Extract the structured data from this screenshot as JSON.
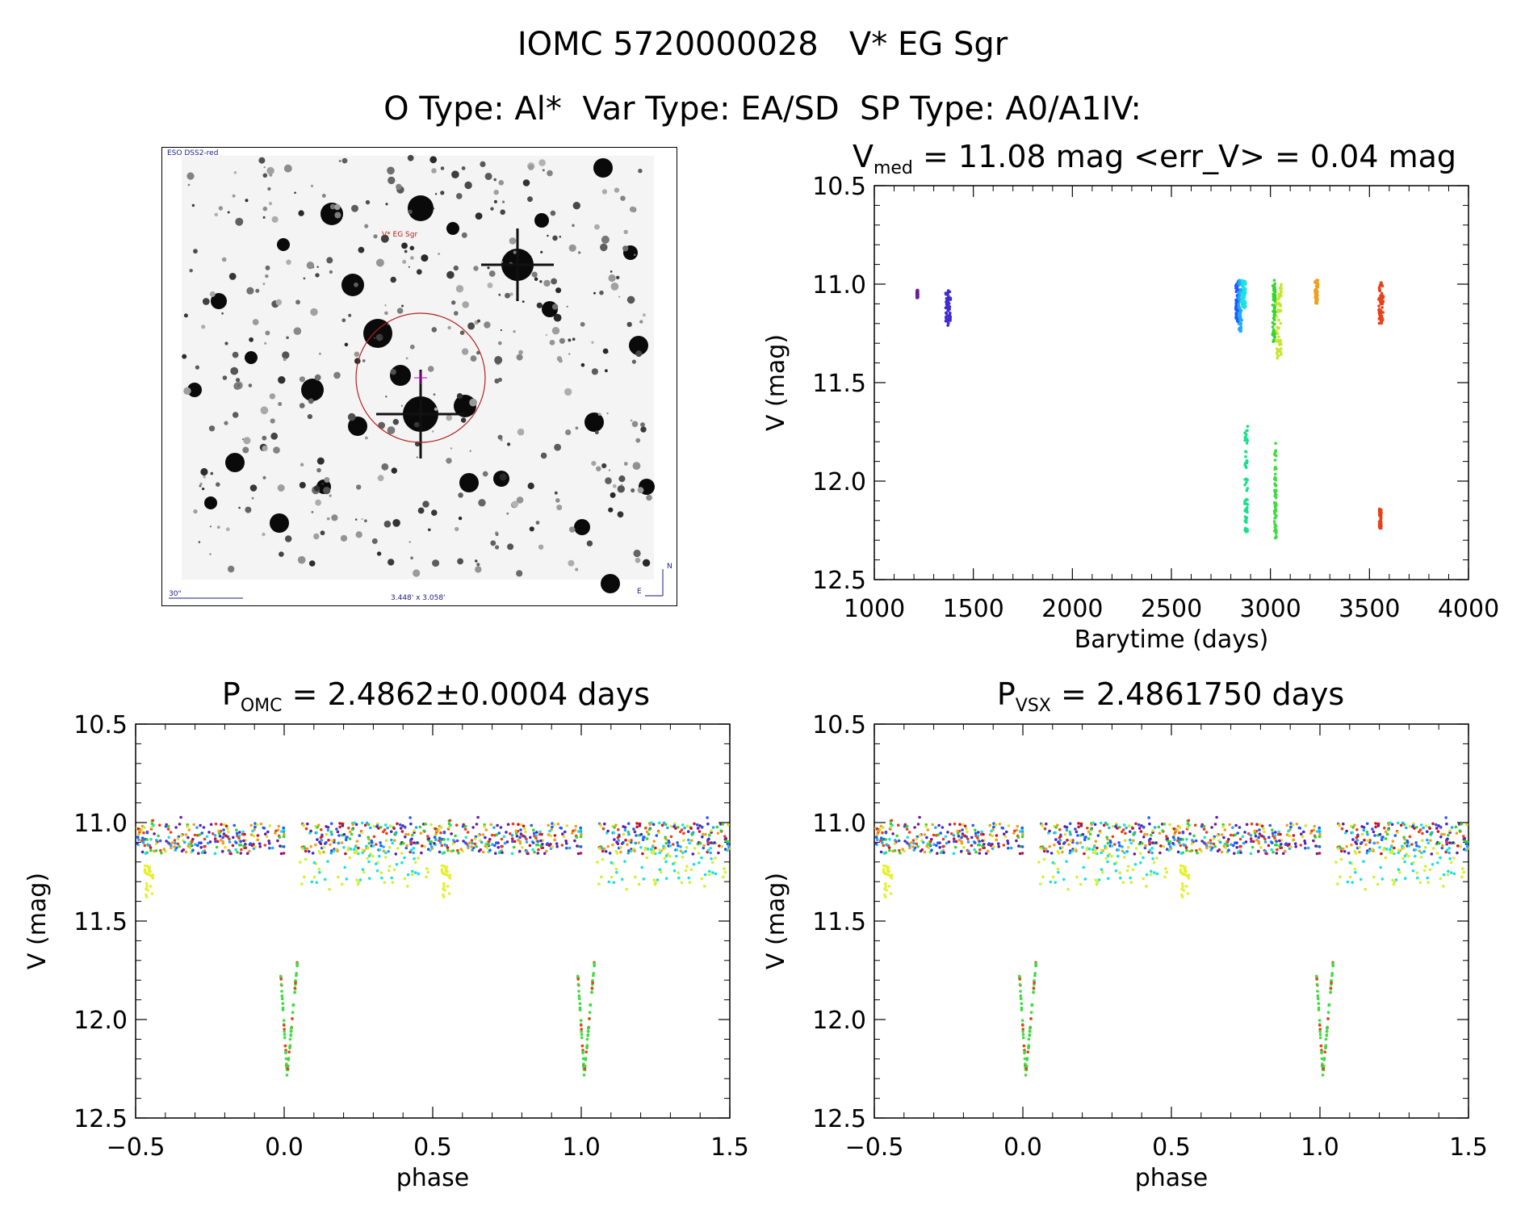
{
  "header": {
    "title": "IOMC 5720000028   V* EG Sgr",
    "subtitle": "O Type: Al*  Var Type: EA/SD  SP Type: A0/A1IV:"
  },
  "sky_image": {
    "survey_label": "ESO DSS2-red",
    "target_label": "V* EG Sgr",
    "scale_label": "30\"",
    "fov_label": "3.448' x 3.058'",
    "north_label": "N",
    "east_label": "E",
    "circle_color": "#b22222",
    "label_color_survey": "#1a1a8a",
    "label_color_target": "#b22222"
  },
  "panels": {
    "lightcurve": {
      "title_main": "V",
      "title_sub": "med",
      "title_rest": " = 11.08 mag <err_V> = 0.04 mag",
      "xlabel": "Barytime (days)",
      "ylabel": "V (mag)"
    },
    "phase_omc": {
      "title_main": "P",
      "title_sub": "OMC",
      "title_rest": " = 2.4862±0.0004 days",
      "xlabel": "phase",
      "ylabel": "V (mag)"
    },
    "phase_vsx": {
      "title_main": "P",
      "title_sub": "VSX",
      "title_rest": " = 2.4861750 days",
      "xlabel": "phase",
      "ylabel": "V (mag)"
    }
  },
  "chart_data": [
    {
      "type": "scatter",
      "id": "lightcurve",
      "xlim": [
        1000,
        4000
      ],
      "ylim": [
        12.5,
        10.5
      ],
      "x_ticks": [
        1000,
        1500,
        2000,
        2500,
        3000,
        3500,
        4000
      ],
      "x_tick_labels": [
        "1000",
        "1500",
        "2000",
        "2500",
        "3000",
        "3500",
        "4000"
      ],
      "y_ticks": [
        10.5,
        11.0,
        11.5,
        12.0,
        12.5
      ],
      "y_tick_labels": [
        "10.5",
        "11.0",
        "11.5",
        "12.0",
        "12.5"
      ],
      "grid": false,
      "clusters": [
        {
          "x": [
            1215,
            1220
          ],
          "y": [
            11.03,
            11.07
          ],
          "color": "#6a1b9a"
        },
        {
          "x": [
            1360,
            1385
          ],
          "y": [
            11.03,
            11.21
          ],
          "color": "#3f2bd1"
        },
        {
          "x": [
            2825,
            2840
          ],
          "y": [
            10.98,
            11.2
          ],
          "color": "#1e5bff"
        },
        {
          "x": [
            2840,
            2855
          ],
          "y": [
            10.98,
            11.24
          ],
          "color": "#1fa9ff"
        },
        {
          "x": [
            2855,
            2875
          ],
          "y": [
            10.98,
            11.12
          ],
          "color": "#18e2e2"
        },
        {
          "x": [
            2870,
            2885
          ],
          "y": [
            11.72,
            12.26
          ],
          "color": "#19e08c"
        },
        {
          "x": [
            3010,
            3025
          ],
          "y": [
            10.98,
            11.3
          ],
          "color": "#33d62b"
        },
        {
          "x": [
            3020,
            3030
          ],
          "y": [
            11.8,
            12.3
          ],
          "color": "#3fdc3f"
        },
        {
          "x": [
            3030,
            3055
          ],
          "y": [
            11.0,
            11.38
          ],
          "color": "#c9e52b"
        },
        {
          "x": [
            3225,
            3240
          ],
          "y": [
            10.98,
            11.1
          ],
          "color": "#f0a020"
        },
        {
          "x": [
            3545,
            3570
          ],
          "y": [
            10.99,
            11.2
          ],
          "color": "#e8401a"
        },
        {
          "x": [
            3550,
            3560
          ],
          "y": [
            12.14,
            12.24
          ],
          "color": "#e8401a"
        }
      ]
    },
    {
      "type": "scatter",
      "id": "phase_omc",
      "xlim": [
        -0.5,
        1.5
      ],
      "ylim": [
        12.5,
        10.5
      ],
      "x_ticks": [
        -0.5,
        0.0,
        0.5,
        1.0,
        1.5
      ],
      "x_tick_labels": [
        "−0.5",
        "0.0",
        "0.5",
        "1.0",
        "1.5"
      ],
      "y_ticks": [
        10.5,
        11.0,
        11.5,
        12.0,
        12.5
      ],
      "y_tick_labels": [
        "10.5",
        "11.0",
        "11.5",
        "12.0",
        "12.5"
      ],
      "grid": false,
      "shift": 0.0,
      "eclipse": {
        "phase": 0.0,
        "depth": 12.28,
        "ingress": [
          -0.012,
          11.76
        ],
        "egress": [
          0.045,
          11.7
        ]
      },
      "out_of_eclipse_mag": [
        10.98,
        11.25
      ],
      "dip_mag": [
        11.2,
        11.38
      ]
    },
    {
      "type": "scatter",
      "id": "phase_vsx",
      "xlim": [
        -0.5,
        1.5
      ],
      "ylim": [
        12.5,
        10.5
      ],
      "x_ticks": [
        -0.5,
        0.0,
        0.5,
        1.0,
        1.5
      ],
      "x_tick_labels": [
        "−0.5",
        "0.0",
        "0.5",
        "1.0",
        "1.5"
      ],
      "y_ticks": [
        10.5,
        11.0,
        11.5,
        12.0,
        12.5
      ],
      "y_tick_labels": [
        "10.5",
        "11.0",
        "11.5",
        "12.0",
        "12.5"
      ],
      "grid": false,
      "shift": 0.0,
      "eclipse": {
        "phase": 0.0,
        "depth": 12.28,
        "ingress": [
          -0.012,
          11.76
        ],
        "egress": [
          0.045,
          11.7
        ]
      },
      "out_of_eclipse_mag": [
        10.98,
        11.25
      ],
      "dip_mag": [
        11.2,
        11.38
      ]
    }
  ]
}
